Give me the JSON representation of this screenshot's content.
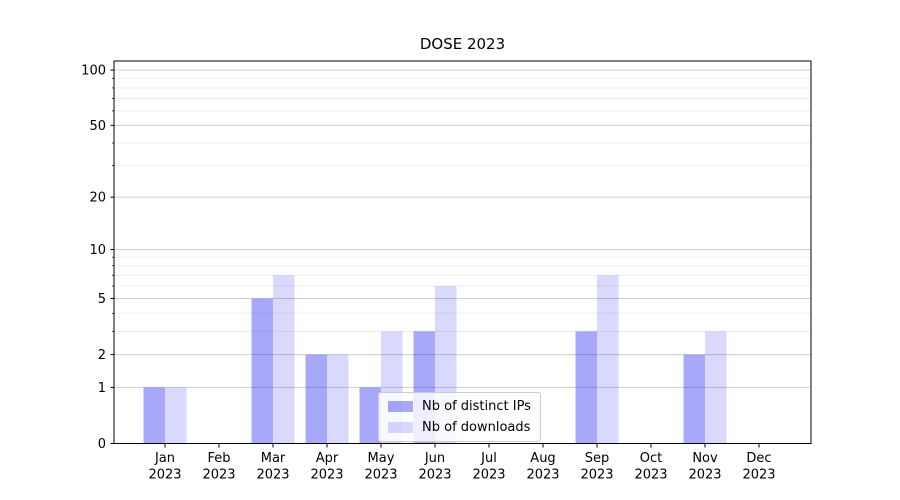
{
  "chart_data": {
    "type": "bar",
    "title": "DOSE 2023",
    "categories": [
      "Jan 2023",
      "Feb 2023",
      "Mar 2023",
      "Apr 2023",
      "May 2023",
      "Jun 2023",
      "Jul 2023",
      "Aug 2023",
      "Sep 2023",
      "Oct 2023",
      "Nov 2023",
      "Dec 2023"
    ],
    "series": [
      {
        "name": "Nb of distinct IPs",
        "fill": "rgba(0,0,240,0.34)",
        "values": [
          1,
          0,
          5,
          2,
          1,
          3,
          0,
          0,
          3,
          0,
          2,
          0
        ]
      },
      {
        "name": "Nb of downloads",
        "fill": "rgba(0,0,240,0.15)",
        "values": [
          1,
          0,
          7,
          2,
          3,
          6,
          0,
          0,
          7,
          0,
          3,
          0
        ]
      }
    ],
    "xlabel": "",
    "ylabel": "",
    "yscale": "log1p",
    "ylim": [
      0,
      112
    ],
    "y_major_ticks": [
      0,
      1,
      2,
      5,
      10,
      20,
      50,
      100
    ],
    "y_minor_ticks": [
      3,
      4,
      6,
      7,
      8,
      9,
      30,
      40,
      60,
      70,
      80,
      90
    ],
    "grid": true,
    "legend_position": "lower center"
  },
  "colors": {
    "axis": "#000000",
    "grid_major": "#cfcfcf",
    "grid_minor": "#ededed",
    "background": "#ffffff"
  }
}
